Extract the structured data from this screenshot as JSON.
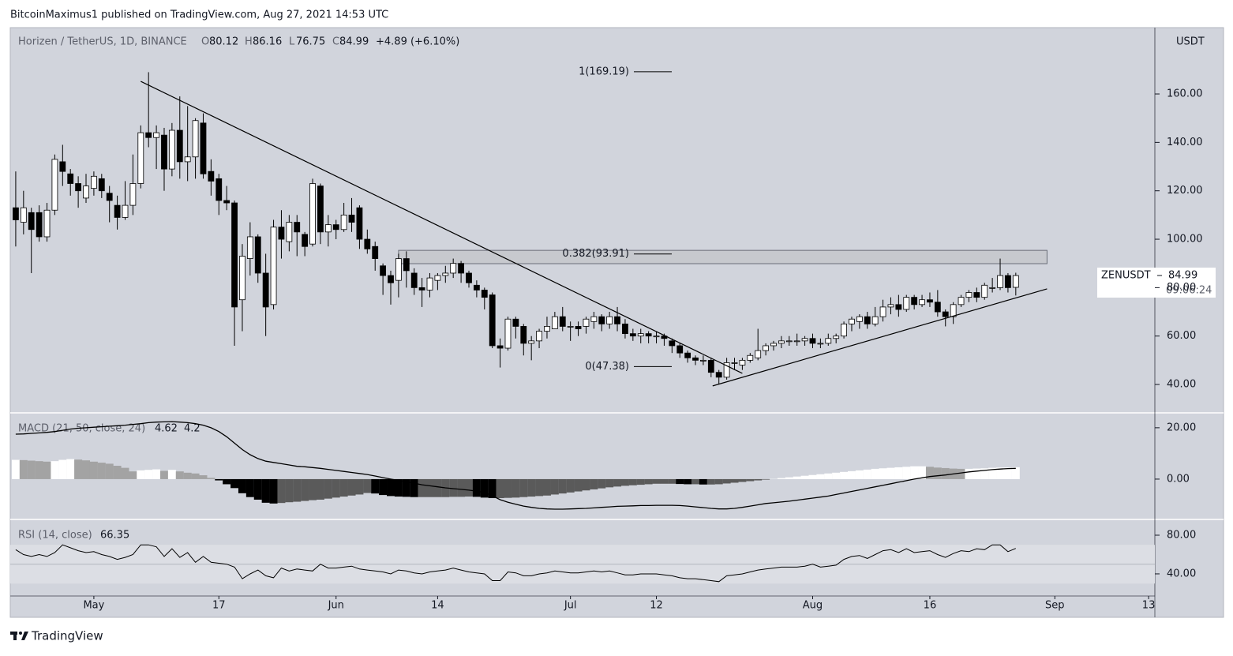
{
  "header": {
    "publisher": "BitcoinMaximus1 published on TradingView.com, Aug 27, 2021 14:53 UTC",
    "symbol": "Horizen / TetherUS, 1D, BINANCE",
    "ohlc_labels": [
      "O",
      "H",
      "L",
      "C"
    ],
    "change": "+4.89 (+6.10%)",
    "currency": "USDT",
    "ticker": "ZENUSDT",
    "countdown": "09:06:24"
  },
  "chart_data": [
    {
      "type": "candlestick",
      "title": "Horizen / TetherUS, 1D, BINANCE",
      "open": [
        113,
        107,
        111,
        111,
        101,
        112,
        132,
        127,
        123,
        117,
        121,
        125,
        119,
        114,
        109,
        114,
        123,
        144,
        142,
        143,
        129,
        145,
        132,
        134,
        148,
        128,
        125,
        116,
        115,
        75,
        92,
        101,
        86,
        73,
        105,
        99,
        107,
        102,
        98,
        122,
        103,
        106,
        104,
        110,
        113,
        100,
        97,
        89,
        85,
        83,
        92,
        86,
        80,
        79,
        83,
        85,
        86,
        90,
        86,
        81,
        79,
        77,
        56,
        55,
        67,
        64,
        57,
        58,
        62,
        63,
        68,
        64,
        64,
        64,
        66,
        68,
        65,
        68,
        65,
        61,
        60,
        61,
        60,
        60,
        58,
        56,
        53,
        51,
        50,
        50,
        45,
        43,
        49,
        48,
        50,
        51,
        54,
        56,
        57,
        58,
        58,
        58,
        59,
        57,
        57,
        59,
        60,
        65,
        66,
        68,
        65,
        68,
        72,
        73,
        71,
        76,
        73,
        75,
        74,
        70,
        68,
        73,
        76,
        78,
        76,
        80,
        80,
        85,
        80.12
      ],
      "high": [
        128,
        120,
        113,
        114,
        115,
        135,
        139,
        129,
        126,
        127,
        128,
        127,
        122,
        118,
        124,
        135,
        147,
        169,
        147,
        146,
        148,
        159,
        155,
        150,
        152,
        133,
        127,
        122,
        116,
        98,
        107,
        102,
        94,
        108,
        112,
        110,
        110,
        103,
        125,
        123,
        110,
        108,
        115,
        117,
        114,
        104,
        99,
        90,
        87,
        94,
        95,
        88,
        84,
        86,
        86,
        89,
        92,
        91,
        87,
        83,
        80,
        78,
        59,
        68,
        68,
        65,
        60,
        63,
        68,
        70,
        72,
        66,
        66,
        68,
        70,
        69,
        70,
        72,
        67,
        63,
        63,
        62,
        62,
        61,
        59,
        57,
        54,
        52,
        52,
        51,
        46,
        51,
        51,
        51,
        53,
        63,
        57,
        58,
        60,
        60,
        61,
        60,
        61,
        59,
        61,
        61,
        66,
        68,
        69,
        70,
        72,
        75,
        76,
        77,
        77,
        77,
        77,
        78,
        79,
        71,
        74,
        77,
        79,
        80,
        82,
        84,
        92,
        86,
        86.16
      ],
      "low": [
        97,
        102,
        86,
        99,
        99,
        110,
        122,
        118,
        113,
        115,
        118,
        117,
        107,
        104,
        108,
        110,
        121,
        138,
        129,
        120,
        126,
        125,
        124,
        125,
        125,
        118,
        110,
        112,
        56,
        62,
        85,
        82,
        60,
        71,
        92,
        95,
        93,
        93,
        97,
        98,
        97,
        100,
        103,
        103,
        96,
        94,
        87,
        77,
        73,
        76,
        80,
        77,
        72,
        76,
        79,
        82,
        84,
        82,
        80,
        76,
        71,
        55,
        47,
        54,
        59,
        52,
        50,
        55,
        59,
        63,
        62,
        58,
        60,
        61,
        63,
        62,
        63,
        62,
        59,
        58,
        57,
        57,
        57,
        56,
        53,
        51,
        49,
        48,
        48,
        43,
        40,
        42,
        46,
        46,
        49,
        50,
        52,
        54,
        55,
        56,
        56,
        56,
        55,
        55,
        56,
        57,
        59,
        62,
        63,
        63,
        64,
        66,
        69,
        68,
        70,
        71,
        72,
        72,
        68,
        64,
        65,
        72,
        74,
        74,
        75,
        78,
        79,
        78,
        76.75
      ],
      "close": [
        108,
        113,
        104,
        101,
        112,
        133,
        128,
        123,
        120,
        122,
        126,
        120,
        116,
        109,
        114,
        123,
        144,
        142,
        144,
        129,
        145,
        132,
        134,
        149,
        127,
        124,
        116,
        115,
        72,
        93,
        101,
        86,
        72,
        105,
        100,
        107,
        103,
        97,
        123,
        103,
        106,
        104,
        110,
        107,
        100,
        96,
        92,
        85,
        82,
        92,
        87,
        80,
        79,
        84,
        85,
        86,
        90,
        86,
        82,
        79,
        76,
        56,
        55,
        67,
        64,
        57,
        58,
        62,
        64,
        68,
        64,
        64,
        63,
        67,
        68,
        65,
        68,
        65,
        61,
        60,
        61,
        60,
        60,
        59,
        56,
        53,
        51,
        50,
        50,
        45,
        43,
        49,
        49,
        50,
        52,
        54,
        56,
        57,
        58,
        58,
        58,
        59,
        57,
        57,
        59,
        60,
        65,
        67,
        68,
        65,
        68,
        72,
        73,
        71,
        76,
        73,
        75,
        74,
        70,
        68,
        73,
        76,
        78,
        76,
        81,
        80,
        85,
        80,
        84.99
      ],
      "up_color": "#ffffff",
      "down_color": "#000000",
      "xlim": [
        -0.7,
        145.8
      ],
      "xticks": [
        {
          "value": 10,
          "label": "May"
        },
        {
          "value": 26,
          "label": "17"
        },
        {
          "value": 41,
          "label": "Jun"
        },
        {
          "value": 54,
          "label": "14"
        },
        {
          "value": 71,
          "label": "Jul"
        },
        {
          "value": 82,
          "label": "12"
        },
        {
          "value": 102,
          "label": "Aug"
        },
        {
          "value": 117,
          "label": "16"
        },
        {
          "value": 133,
          "label": "Sep"
        },
        {
          "value": 145,
          "label": "13"
        }
      ],
      "ylim": [
        28.6,
        187.4
      ],
      "yticks": [
        {
          "value": 40,
          "label": "40.00"
        },
        {
          "value": 60,
          "label": "60.00"
        },
        {
          "value": 80,
          "label": "80.00"
        },
        {
          "value": 100,
          "label": "100.00"
        },
        {
          "value": 120,
          "label": "120.00"
        },
        {
          "value": 140,
          "label": "140.00"
        },
        {
          "value": 160,
          "label": "160.00"
        }
      ],
      "fib_levels": [
        {
          "label": "1(169.19)",
          "value": 169.19
        },
        {
          "label": "0.382(93.91)",
          "value": 93.91
        },
        {
          "label": "0(47.38)",
          "value": 47.38
        }
      ],
      "zone": {
        "x": [
          49,
          132
        ],
        "y": [
          89.9,
          95.4
        ]
      },
      "trendlines": [
        {
          "x": [
            16,
            93
          ],
          "y": [
            165.2,
            44.6
          ]
        },
        {
          "x": [
            89.2,
            132
          ],
          "y": [
            39.4,
            79.5
          ]
        }
      ]
    },
    {
      "type": "macd",
      "title": "MACD (21, 50, close, 24)",
      "series": [
        {
          "kind": "histogram",
          "values": [
            7.5,
            7.4,
            7.2,
            7.0,
            6.8,
            7.0,
            7.5,
            7.8,
            7.6,
            7.3,
            6.8,
            6.4,
            6.0,
            5.2,
            4.4,
            3.0,
            3.4,
            3.6,
            3.8,
            3.2,
            3.6,
            3.0,
            2.5,
            2.2,
            1.5,
            0.5,
            -0.5,
            -2,
            -3.5,
            -5.5,
            -7,
            -8,
            -9.2,
            -9.5,
            -9.3,
            -9,
            -8.8,
            -8.5,
            -8.2,
            -8,
            -7.6,
            -7.2,
            -6.8,
            -6.4,
            -6,
            -5.4,
            -5.6,
            -6.2,
            -6.6,
            -6.8,
            -6.9,
            -7.0,
            -7.0,
            -7.0,
            -7.0,
            -7.0,
            -6.9,
            -6.9,
            -6.8,
            -6.9,
            -7.2,
            -7.4,
            -7.4,
            -7.3,
            -7.2,
            -7.0,
            -6.8,
            -6.6,
            -6.4,
            -6.0,
            -5.6,
            -5.2,
            -4.8,
            -4.4,
            -4.0,
            -3.6,
            -3.2,
            -2.9,
            -2.6,
            -2.4,
            -2.2,
            -2.0,
            -1.8,
            -1.8,
            -1.8,
            -1.9,
            -2.0,
            -2.0,
            -2.1,
            -2.1,
            -2.0,
            -1.7,
            -1.4,
            -1.1,
            -0.8,
            -0.5,
            -0.2,
            0.1,
            0.4,
            0.7,
            1.0,
            1.3,
            1.6,
            1.9,
            2.2,
            2.5,
            2.8,
            3.1,
            3.4,
            3.7,
            4.0,
            4.2,
            4.4,
            4.6,
            4.8,
            5.0,
            5.0,
            4.8,
            4.5,
            4.3,
            4.1,
            4.0,
            4.0,
            4.1,
            4.2,
            4.4,
            4.5,
            4.5,
            4.62
          ]
        },
        {
          "kind": "line",
          "color": "#000000",
          "values": [
            17.5,
            17.6,
            17.8,
            18,
            18.2,
            18.5,
            19,
            19.5,
            19.8,
            20,
            20.2,
            20.4,
            20.6,
            20.8,
            21,
            21.3,
            21.6,
            22,
            22.2,
            22.3,
            22.4,
            22.2,
            22.0,
            21.6,
            21,
            20,
            18.5,
            16.5,
            14,
            11.5,
            9.5,
            8,
            7,
            6.5,
            6,
            5.5,
            5,
            4.8,
            4.5,
            4.2,
            3.8,
            3.4,
            3,
            2.6,
            2.2,
            1.8,
            1.2,
            0.6,
            0,
            -0.5,
            -1,
            -1.6,
            -2.2,
            -2.6,
            -3,
            -3.4,
            -3.7,
            -4,
            -4.3,
            -4.7,
            -5.2,
            -6.5,
            -8,
            -9,
            -9.8,
            -10.5,
            -11,
            -11.4,
            -11.6,
            -11.7,
            -11.7,
            -11.6,
            -11.5,
            -11.4,
            -11.2,
            -11,
            -10.8,
            -10.6,
            -10.5,
            -10.4,
            -10.3,
            -10.3,
            -10.2,
            -10.2,
            -10.2,
            -10.3,
            -10.5,
            -10.8,
            -11.1,
            -11.4,
            -11.6,
            -11.6,
            -11.4,
            -11,
            -10.5,
            -10,
            -9.5,
            -9.2,
            -8.9,
            -8.6,
            -8.2,
            -7.8,
            -7.4,
            -7,
            -6.6,
            -6,
            -5.4,
            -4.8,
            -4.2,
            -3.6,
            -3,
            -2.4,
            -1.8,
            -1.2,
            -0.6,
            0,
            0.5,
            1,
            1.3,
            1.6,
            2,
            2.4,
            2.8,
            3.1,
            3.4,
            3.7,
            3.9,
            4.1,
            4.2
          ]
        }
      ],
      "bar_colors": {
        "rising_positive": "#ffffff",
        "falling_positive": "#a3a3a3",
        "falling_negative": "#000000",
        "rising_negative": "#5a5a5a"
      },
      "ylim": [
        -15.7,
        25.8
      ],
      "yticks": [
        {
          "value": 0,
          "label": "0.00"
        },
        {
          "value": 20,
          "label": "20.00"
        }
      ]
    },
    {
      "type": "rsi",
      "title": "RSI (14, close)",
      "color": "#000000",
      "values": [
        65,
        60,
        58,
        60,
        58,
        62,
        70,
        67,
        64,
        62,
        63,
        60,
        58,
        55,
        57,
        60,
        70,
        70,
        68,
        58,
        66,
        57,
        62,
        52,
        58,
        52,
        51,
        50,
        47,
        35,
        40,
        44,
        38,
        36,
        46,
        43,
        45,
        44,
        43,
        50,
        46,
        46,
        47,
        48,
        45,
        44,
        43,
        42,
        40,
        44,
        43,
        41,
        40,
        42,
        43,
        44,
        46,
        44,
        42,
        41,
        40,
        33,
        33,
        42,
        41,
        38,
        38,
        40,
        41,
        43,
        42,
        41,
        41,
        42,
        43,
        42,
        43,
        41,
        39,
        39,
        40,
        40,
        40,
        39,
        38,
        36,
        35,
        35,
        34,
        33,
        32,
        38,
        39,
        40,
        42,
        44,
        45,
        46,
        47,
        47,
        47,
        48,
        50,
        47,
        48,
        49,
        55,
        58,
        59,
        56,
        60,
        64,
        65,
        62,
        66,
        62,
        63,
        64,
        60,
        57,
        61,
        64,
        63,
        66,
        65,
        70,
        70,
        63,
        66.35
      ],
      "band": [
        30,
        70
      ],
      "midline": 50,
      "ylim": [
        17.1,
        95.5
      ],
      "yticks": [
        {
          "value": 40,
          "label": "40.00"
        },
        {
          "value": 80,
          "label": "80.00"
        }
      ]
    }
  ],
  "footer": {
    "brand": "TradingView"
  }
}
